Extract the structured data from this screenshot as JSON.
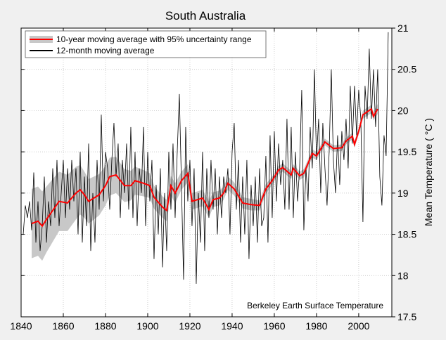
{
  "chart_data": {
    "type": "line",
    "title": "South Australia",
    "xlabel": "",
    "ylabel": "Mean Temperature ( °C )",
    "annotation": "Berkeley Earth Surface Temperature",
    "xlim": [
      1840,
      2015.7
    ],
    "ylim": [
      17.5,
      21
    ],
    "x_ticks": [
      1840,
      1860,
      1880,
      1900,
      1920,
      1940,
      1960,
      1980,
      2000
    ],
    "y_ticks": [
      17.5,
      18,
      18.5,
      19,
      19.5,
      20,
      20.5,
      21
    ],
    "y_tick_labels": [
      "17.5",
      "18",
      "18.5",
      "19",
      "19.5",
      "20",
      "20.5",
      "21"
    ],
    "y_axis_side": "right",
    "grid": true,
    "legend_position": "top-left",
    "colors": {
      "background": "#f0f0f0",
      "plot": "#ffffff",
      "ma10": "#ff0000",
      "band": "#c8c8c8",
      "ma12": "#000000"
    },
    "series": [
      {
        "name": "10-year moving average with 95% uncertainty range",
        "x": [
          1845,
          1848,
          1850,
          1852,
          1855,
          1858,
          1862,
          1866,
          1868,
          1870,
          1872,
          1877,
          1880,
          1882,
          1885,
          1889,
          1892,
          1894,
          1898,
          1901,
          1903,
          1907,
          1909,
          1911,
          1913,
          1916,
          1919,
          1921,
          1926,
          1929,
          1931,
          1934,
          1936,
          1938,
          1941,
          1945,
          1949,
          1953,
          1956,
          1959,
          1962,
          1964,
          1968,
          1969,
          1972,
          1974,
          1978,
          1980,
          1984,
          1988,
          1992,
          1994,
          1997,
          1998,
          2000,
          2002,
          2006,
          2007,
          2009
        ],
        "y": [
          18.63,
          18.66,
          18.6,
          18.68,
          18.79,
          18.9,
          18.88,
          19.0,
          19.04,
          18.98,
          18.9,
          18.98,
          19.09,
          19.2,
          19.22,
          19.09,
          19.09,
          19.15,
          19.12,
          19.09,
          18.95,
          18.83,
          18.79,
          19.09,
          19.0,
          19.15,
          19.24,
          18.9,
          18.94,
          18.8,
          18.92,
          18.94,
          19.0,
          19.12,
          19.05,
          18.88,
          18.86,
          18.85,
          19.05,
          19.15,
          19.28,
          19.31,
          19.22,
          19.3,
          19.21,
          19.24,
          19.48,
          19.45,
          19.62,
          19.54,
          19.55,
          19.63,
          19.69,
          19.59,
          19.75,
          19.95,
          20.02,
          19.93,
          20.02
        ],
        "uncertainty_halfwidth": [
          0.42,
          0.42,
          0.42,
          0.4,
          0.38,
          0.36,
          0.34,
          0.32,
          0.3,
          0.28,
          0.27,
          0.25,
          0.24,
          0.23,
          0.22,
          0.2,
          0.18,
          0.17,
          0.16,
          0.15,
          0.14,
          0.13,
          0.13,
          0.12,
          0.12,
          0.11,
          0.11,
          0.1,
          0.1,
          0.1,
          0.09,
          0.09,
          0.08,
          0.08,
          0.08,
          0.07,
          0.07,
          0.06,
          0.06,
          0.05,
          0.05,
          0.05,
          0.05,
          0.05,
          0.05,
          0.05,
          0.05,
          0.05,
          0.04,
          0.04,
          0.04,
          0.04,
          0.04,
          0.04,
          0.04,
          0.05,
          0.05,
          0.05,
          0.06
        ]
      },
      {
        "name": "12-month moving average",
        "x_start": 1841,
        "x_step": 1,
        "y": [
          18.5,
          18.85,
          18.7,
          18.9,
          18.55,
          19.25,
          18.4,
          18.9,
          18.3,
          18.6,
          19.2,
          18.4,
          18.9,
          18.6,
          19.3,
          18.7,
          19.4,
          18.6,
          19.0,
          19.4,
          18.7,
          19.3,
          18.8,
          19.4,
          18.9,
          19.3,
          18.5,
          19.5,
          18.4,
          19.2,
          18.6,
          19.6,
          18.3,
          19.0,
          18.4,
          19.4,
          18.8,
          19.95,
          18.9,
          19.5,
          19.3,
          18.8,
          19.4,
          19.85,
          19.2,
          19.6,
          18.7,
          19.4,
          19.0,
          19.6,
          18.8,
          19.8,
          18.7,
          19.5,
          18.6,
          19.3,
          19.0,
          19.8,
          18.6,
          19.5,
          18.9,
          19.4,
          18.2,
          19.1,
          18.5,
          19.3,
          18.1,
          19.0,
          18.3,
          19.5,
          18.8,
          19.6,
          18.7,
          19.5,
          20.2,
          19.1,
          17.95,
          19.8,
          18.9,
          19.4,
          18.6,
          19.3,
          17.9,
          19.0,
          18.4,
          19.5,
          18.3,
          19.3,
          18.7,
          19.4,
          18.8,
          19.3,
          18.5,
          19.2,
          18.7,
          19.2,
          19.0,
          19.3,
          18.5,
          19.5,
          19.85,
          18.8,
          19.4,
          18.4,
          19.2,
          18.5,
          19.4,
          18.2,
          19.1,
          18.6,
          19.2,
          18.4,
          19.3,
          18.6,
          18.7,
          19.45,
          18.4,
          19.7,
          18.7,
          19.75,
          18.9,
          19.6,
          19.1,
          19.4,
          18.8,
          19.9,
          18.8,
          19.8,
          18.7,
          19.5,
          18.9,
          19.3,
          20.25,
          18.55,
          19.3,
          18.9,
          19.8,
          19.3,
          20.5,
          19.4,
          19.9,
          19.0,
          19.85,
          19.3,
          18.85,
          19.5,
          20.5,
          19.4,
          19.0,
          19.7,
          19.1,
          19.75,
          19.4,
          19.9,
          19.3,
          20.3,
          19.6,
          20.3,
          19.7,
          20.25,
          19.9,
          18.65,
          20.3,
          19.9,
          20.75,
          19.9,
          20.5,
          19.8,
          20.5,
          19.2,
          18.85,
          19.7,
          19.45,
          20.95
        ]
      }
    ]
  }
}
